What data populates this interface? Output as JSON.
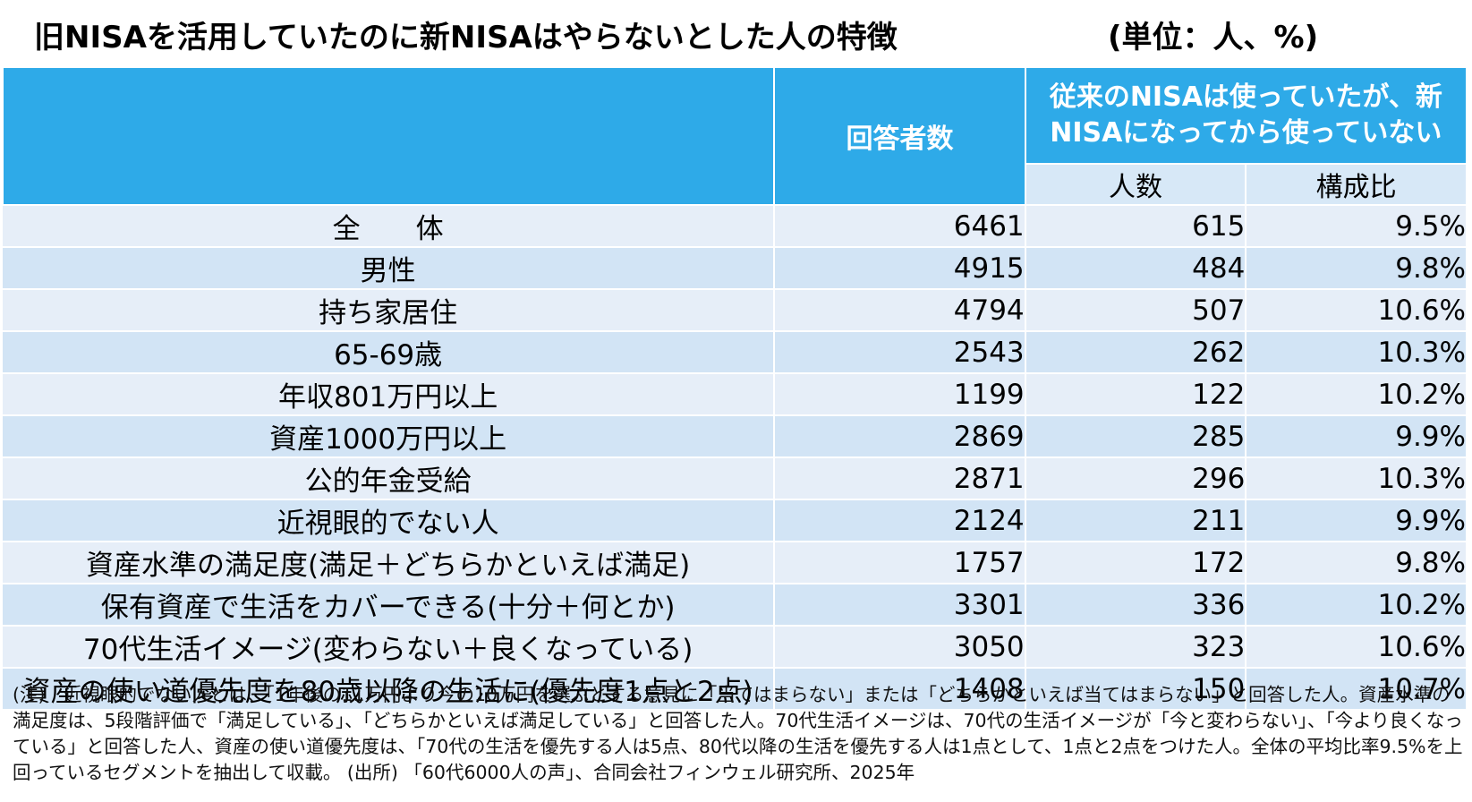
{
  "title": "旧NISAを活用していたのに新NISAはやらないとした人の特徴",
  "unit": "(単位：人、%)",
  "chart_data": {
    "type": "table",
    "columns": {
      "respondents": "回答者数",
      "group": "従来のNISAは使っていたが、新NISAになってから使っていない",
      "count": "人数",
      "ratio": "構成比"
    },
    "rows": [
      {
        "label": "全　　体",
        "respondents": "6461",
        "count": "615",
        "ratio": "9.5%"
      },
      {
        "label": "男性",
        "respondents": "4915",
        "count": "484",
        "ratio": "9.8%"
      },
      {
        "label": "持ち家居住",
        "respondents": "4794",
        "count": "507",
        "ratio": "10.6%"
      },
      {
        "label": "65-69歳",
        "respondents": "2543",
        "count": "262",
        "ratio": "10.3%"
      },
      {
        "label": "年収801万円以上",
        "respondents": "1199",
        "count": "122",
        "ratio": "10.2%"
      },
      {
        "label": "資産1000万円以上",
        "respondents": "2869",
        "count": "285",
        "ratio": "9.9%"
      },
      {
        "label": "公的年金受給",
        "respondents": "2871",
        "count": "296",
        "ratio": "10.3%"
      },
      {
        "label": "近視眼的でない人",
        "respondents": "2124",
        "count": "211",
        "ratio": "9.9%"
      },
      {
        "label": "資産水準の満足度(満足＋どちらかといえば満足)",
        "respondents": "1757",
        "count": "172",
        "ratio": "9.8%"
      },
      {
        "label": "保有資産で生活をカバーできる(十分＋何とか)",
        "respondents": "3301",
        "count": "336",
        "ratio": "10.2%"
      },
      {
        "label": "70代生活イメージ(変わらない＋良くなっている)",
        "respondents": "3050",
        "count": "323",
        "ratio": "10.6%"
      },
      {
        "label": "資産の使い道優先度を80歳以降の生活に(優先度1点と2点)",
        "respondents": "1408",
        "count": "150",
        "ratio": "10.7%"
      }
    ]
  },
  "note": "(注)　近視眼的でない人とは、「1年後の11万円より今の10万円を選ぶとする意見に「当てはまらない」または「どちらかといえば当てはまらない」と回答した人。資産水準の満足度は、5段階評価で「満足している」、「どちらかといえば満足している」と回答した人。70代生活イメージは、70代の生活イメージが「今と変わらない」、「今より良くなっている」と回答した人、資産の使い道優先度は、「70代の生活を優先する人は5点、80代以降の生活を優先する人は1点として、1点と2点をつけた人。全体の平均比率9.5%を上回っているセグメントを抽出して収載。 (出所) 「60代6000人の声」、合同会社フィンウェル研究所、2025年",
  "colors": {
    "header": "#2eaae8",
    "subheader": "#d7e8f7",
    "row_odd": "#e6eef8",
    "row_even": "#d2e4f5"
  }
}
